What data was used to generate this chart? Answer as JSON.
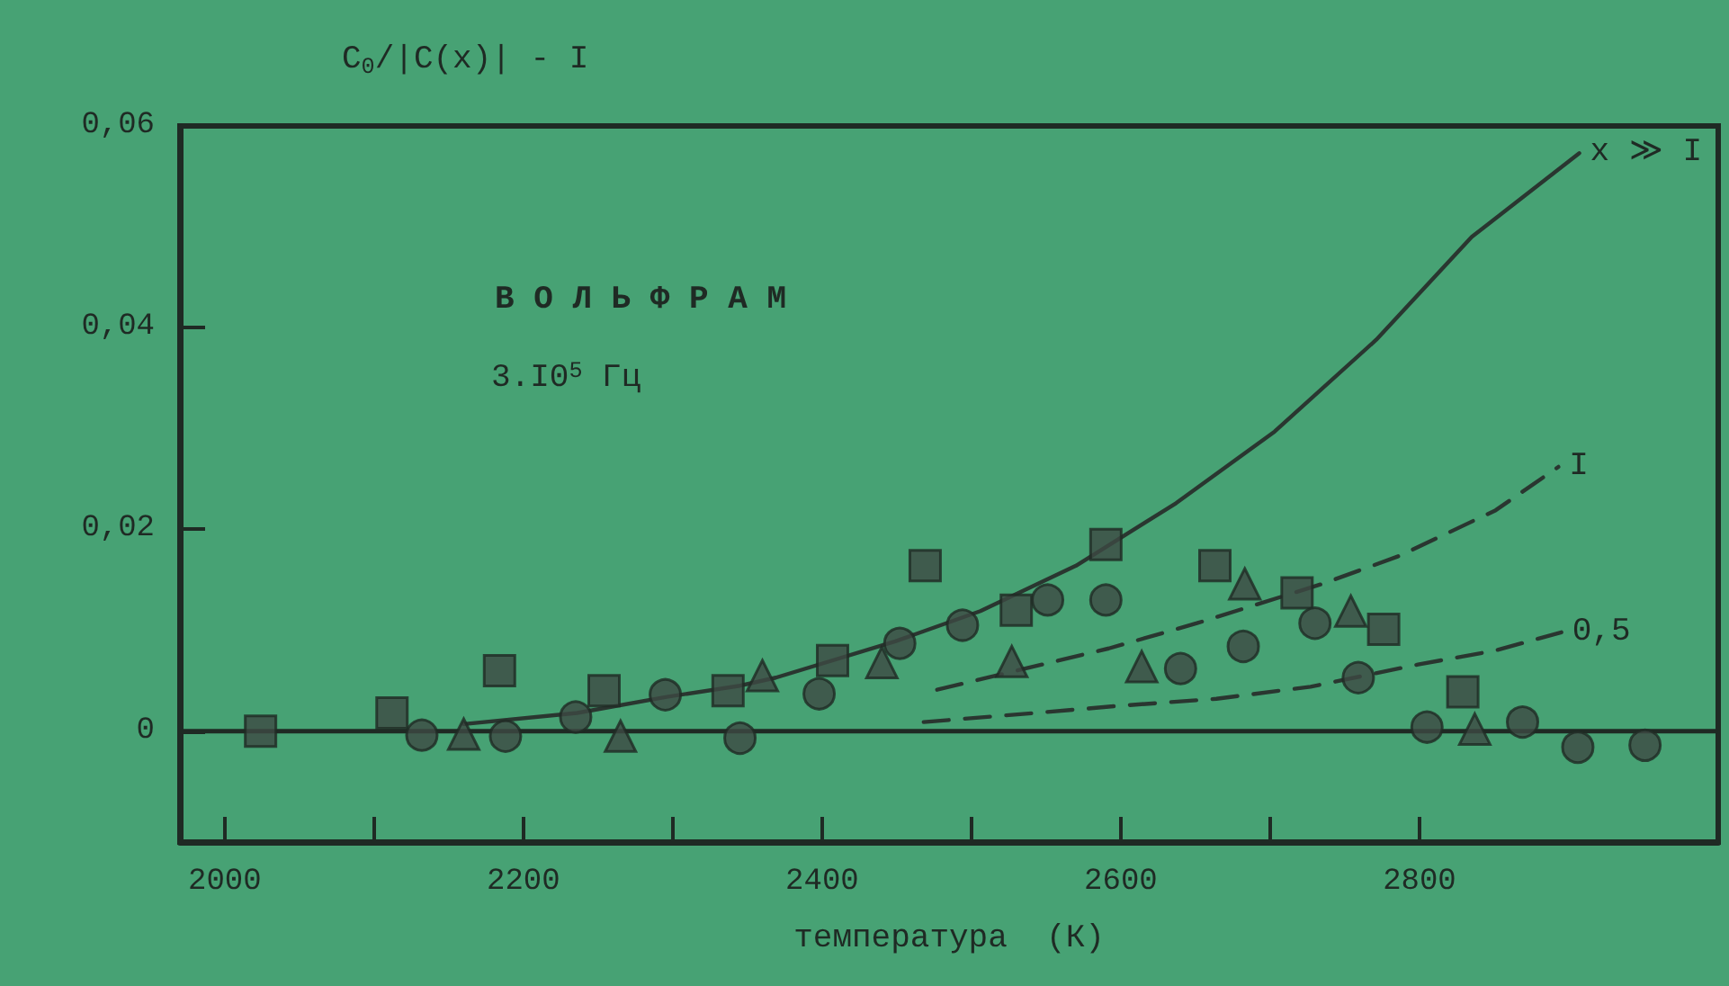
{
  "chart_data": {
    "type": "scatter",
    "xlabel": "температура  (К)",
    "ylabel": "C$_{0}$/|C(x)| - I",
    "annotations": [
      "В О Л Ь Ф Р А М",
      "3.I0$^{5}$ Гц"
    ],
    "xlim": [
      1970,
      3000
    ],
    "ylim": [
      -0.011,
      0.06
    ],
    "xticks": [
      2000,
      {
        "value": 2100,
        "label": null
      },
      2200,
      {
        "value": 2300,
        "label": null
      },
      2400,
      {
        "value": 2500,
        "label": null
      },
      2600,
      {
        "value": 2700,
        "label": null
      },
      2800
    ],
    "yticks": [
      0,
      {
        "value": 0.02,
        "label": "0,02"
      },
      {
        "value": 0.04,
        "label": "0,04"
      },
      {
        "value": 0.06,
        "label": "0,06"
      }
    ],
    "grid": false,
    "legend": false,
    "ref_lines": [
      {
        "axis": "y",
        "value": 0,
        "color": "#1f2a24",
        "line_style": "solid"
      }
    ],
    "series": [
      {
        "marker": "square",
        "color": "#3d4a44",
        "x": [
          2024,
          2112,
          2184,
          2254,
          2337,
          2407,
          2469,
          2530,
          2590,
          2663,
          2718,
          2776,
          2829
        ],
        "values": [
          0.0,
          0.0018,
          0.006,
          0.004,
          0.004,
          0.007,
          0.0164,
          0.012,
          0.0185,
          0.0164,
          0.0137,
          0.0101,
          0.0039
        ]
      },
      {
        "marker": "circle",
        "color": "#3d4a44",
        "x": [
          2132,
          2188,
          2235,
          2295,
          2345,
          2398,
          2452,
          2494,
          2551,
          2590,
          2640,
          2682,
          2730,
          2759,
          2805,
          2869,
          2906,
          2951
        ],
        "values": [
          -0.0004,
          -0.0005,
          0.0014,
          0.0036,
          -0.0007,
          0.0037,
          0.0087,
          0.0105,
          0.013,
          0.013,
          0.0062,
          0.0084,
          0.0107,
          0.0053,
          0.0004,
          0.0009,
          -0.0016,
          -0.0014
        ]
      },
      {
        "marker": "triangle",
        "color": "#3d4a44",
        "x": [
          2160,
          2265,
          2360,
          2440,
          2527,
          2614,
          2683,
          2754,
          2837
        ],
        "values": [
          -0.0003,
          -0.0005,
          0.0055,
          0.0068,
          0.0069,
          0.0064,
          0.0146,
          0.0119,
          0.0002
        ]
      },
      {
        "type": "line",
        "name": "x ≫ I",
        "line_style": "solid",
        "marker": "none",
        "color": "#2a3630",
        "x": [
          2160,
          2236,
          2296,
          2345,
          2369,
          2449,
          2506,
          2570,
          2637,
          2703,
          2771,
          2835,
          2907
        ],
        "values": [
          0.0007,
          0.0018,
          0.0034,
          0.0045,
          0.0053,
          0.0089,
          0.0119,
          0.0164,
          0.0226,
          0.0297,
          0.0388,
          0.049,
          0.0573
        ]
      },
      {
        "type": "line",
        "name": "I",
        "line_style": "dashed",
        "marker": "none",
        "color": "#2a3630",
        "x": [
          2477,
          2592,
          2651,
          2735,
          2787,
          2851,
          2893
        ],
        "values": [
          0.0041,
          0.0082,
          0.0107,
          0.0146,
          0.0174,
          0.0219,
          0.0262
        ]
      },
      {
        "type": "line",
        "name": "0,5",
        "line_style": "dashed",
        "marker": "none",
        "color": "#2a3630",
        "x": [
          2468,
          2543,
          2598,
          2664,
          2727,
          2799,
          2851,
          2895
        ],
        "values": [
          0.0009,
          0.0018,
          0.0025,
          0.0032,
          0.0044,
          0.0066,
          0.008,
          0.0098
        ]
      }
    ]
  }
}
